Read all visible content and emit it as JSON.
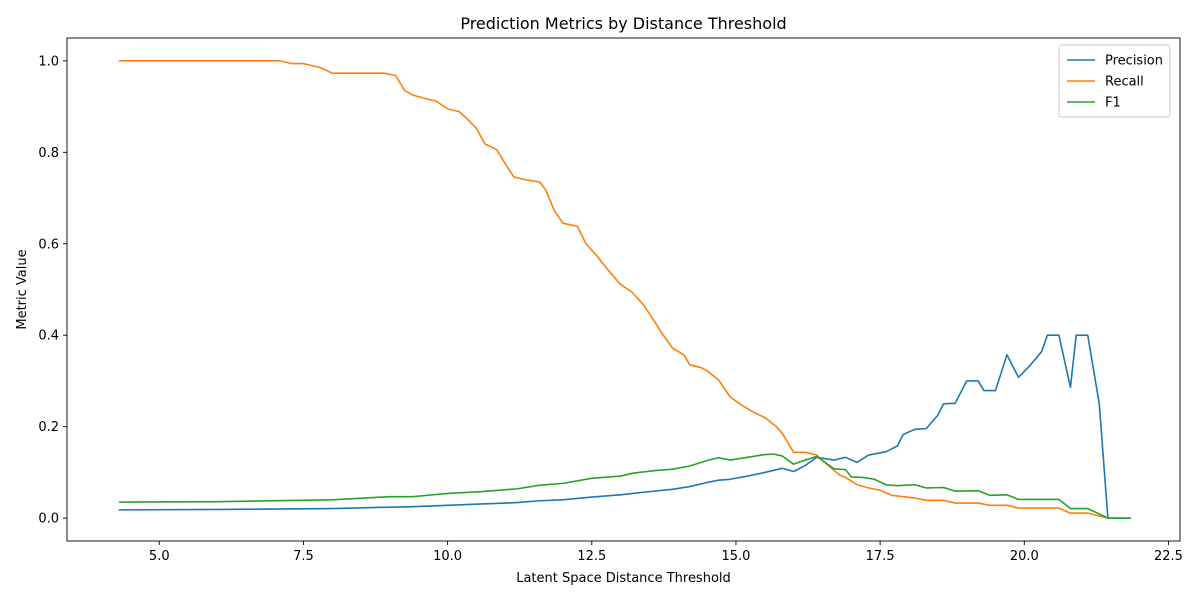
{
  "chart_data": {
    "type": "line",
    "title": "Prediction Metrics by Distance Threshold",
    "xlabel": "Latent Space Distance Threshold",
    "ylabel": "Metric Value",
    "xlim": [
      3.4,
      22.7
    ],
    "ylim": [
      -0.05,
      1.05
    ],
    "xticks": [
      5.0,
      7.5,
      10.0,
      12.5,
      15.0,
      17.5,
      20.0,
      22.5
    ],
    "xtick_labels": [
      "5.0",
      "7.5",
      "10.0",
      "12.5",
      "15.0",
      "17.5",
      "20.0",
      "22.5"
    ],
    "yticks": [
      0.0,
      0.2,
      0.4,
      0.6,
      0.8,
      1.0
    ],
    "ytick_labels": [
      "0.0",
      "0.2",
      "0.4",
      "0.6",
      "0.8",
      "1.0"
    ],
    "grid": false,
    "legend_position": "top-right",
    "series": [
      {
        "name": "Precision",
        "color": "#1f77b4",
        "x": [
          4.3,
          6.0,
          8.0,
          9.0,
          9.4,
          10.0,
          10.6,
          11.2,
          11.6,
          12.0,
          12.5,
          13.0,
          13.5,
          13.9,
          14.2,
          14.5,
          14.7,
          14.9,
          15.2,
          15.5,
          15.8,
          16.0,
          16.2,
          16.4,
          16.7,
          16.9,
          17.1,
          17.3,
          17.6,
          17.8,
          17.9,
          18.1,
          18.3,
          18.5,
          18.6,
          18.8,
          19.0,
          19.2,
          19.3,
          19.5,
          19.7,
          19.9,
          20.1,
          20.3,
          20.4,
          20.6,
          20.8,
          20.9,
          21.1,
          21.3,
          21.45,
          21.85
        ],
        "values": [
          0.018,
          0.019,
          0.021,
          0.024,
          0.025,
          0.028,
          0.031,
          0.034,
          0.038,
          0.04,
          0.046,
          0.051,
          0.058,
          0.063,
          0.069,
          0.078,
          0.083,
          0.085,
          0.092,
          0.1,
          0.109,
          0.102,
          0.115,
          0.133,
          0.127,
          0.133,
          0.122,
          0.138,
          0.145,
          0.158,
          0.183,
          0.194,
          0.196,
          0.225,
          0.25,
          0.251,
          0.3,
          0.3,
          0.279,
          0.279,
          0.357,
          0.308,
          0.334,
          0.364,
          0.4,
          0.4,
          0.286,
          0.4,
          0.4,
          0.25,
          0.0,
          0.0
        ]
      },
      {
        "name": "Recall",
        "color": "#ff7f0e",
        "x": [
          4.3,
          7.1,
          7.3,
          7.5,
          7.8,
          8.0,
          8.2,
          8.9,
          9.1,
          9.25,
          9.4,
          9.6,
          9.8,
          10.0,
          10.2,
          10.35,
          10.5,
          10.65,
          10.85,
          11.0,
          11.15,
          11.35,
          11.6,
          11.7,
          11.85,
          12.0,
          12.25,
          12.4,
          12.6,
          12.8,
          13.0,
          13.2,
          13.4,
          13.6,
          13.7,
          13.9,
          14.1,
          14.2,
          14.4,
          14.5,
          14.7,
          14.9,
          15.1,
          15.3,
          15.5,
          15.7,
          15.8,
          16.0,
          16.2,
          16.4,
          16.6,
          16.8,
          16.9,
          17.1,
          17.3,
          17.5,
          17.7,
          18.1,
          18.3,
          18.6,
          18.8,
          19.2,
          19.4,
          19.7,
          19.9,
          20.6,
          20.8,
          21.1,
          21.45,
          21.85
        ],
        "values": [
          1.0,
          1.0,
          0.994,
          0.994,
          0.985,
          0.973,
          0.973,
          0.973,
          0.968,
          0.936,
          0.925,
          0.918,
          0.912,
          0.895,
          0.889,
          0.872,
          0.852,
          0.818,
          0.806,
          0.775,
          0.746,
          0.74,
          0.735,
          0.718,
          0.673,
          0.645,
          0.638,
          0.6,
          0.572,
          0.54,
          0.511,
          0.494,
          0.466,
          0.428,
          0.407,
          0.372,
          0.357,
          0.335,
          0.329,
          0.322,
          0.302,
          0.265,
          0.247,
          0.232,
          0.22,
          0.2,
          0.186,
          0.144,
          0.144,
          0.138,
          0.115,
          0.094,
          0.089,
          0.073,
          0.066,
          0.061,
          0.05,
          0.044,
          0.039,
          0.039,
          0.033,
          0.033,
          0.028,
          0.028,
          0.022,
          0.022,
          0.011,
          0.011,
          0.0,
          0.0
        ]
      },
      {
        "name": "F1",
        "color": "#2ca02c",
        "x": [
          4.3,
          6.0,
          8.0,
          9.0,
          9.4,
          10.0,
          10.6,
          11.2,
          11.6,
          12.0,
          12.5,
          13.0,
          13.2,
          13.6,
          13.9,
          14.2,
          14.5,
          14.7,
          14.9,
          15.2,
          15.5,
          15.65,
          15.8,
          16.0,
          16.2,
          16.4,
          16.7,
          16.9,
          17.0,
          17.2,
          17.4,
          17.6,
          17.8,
          18.1,
          18.3,
          18.6,
          18.8,
          19.2,
          19.4,
          19.7,
          19.9,
          20.6,
          20.8,
          21.1,
          21.45,
          21.85
        ],
        "values": [
          0.035,
          0.036,
          0.04,
          0.047,
          0.047,
          0.054,
          0.058,
          0.064,
          0.072,
          0.076,
          0.087,
          0.092,
          0.098,
          0.104,
          0.107,
          0.114,
          0.126,
          0.132,
          0.127,
          0.133,
          0.139,
          0.14,
          0.136,
          0.118,
          0.127,
          0.135,
          0.108,
          0.106,
          0.09,
          0.089,
          0.085,
          0.073,
          0.071,
          0.073,
          0.066,
          0.067,
          0.059,
          0.06,
          0.05,
          0.051,
          0.041,
          0.041,
          0.021,
          0.021,
          0.0,
          0.0
        ]
      }
    ]
  }
}
